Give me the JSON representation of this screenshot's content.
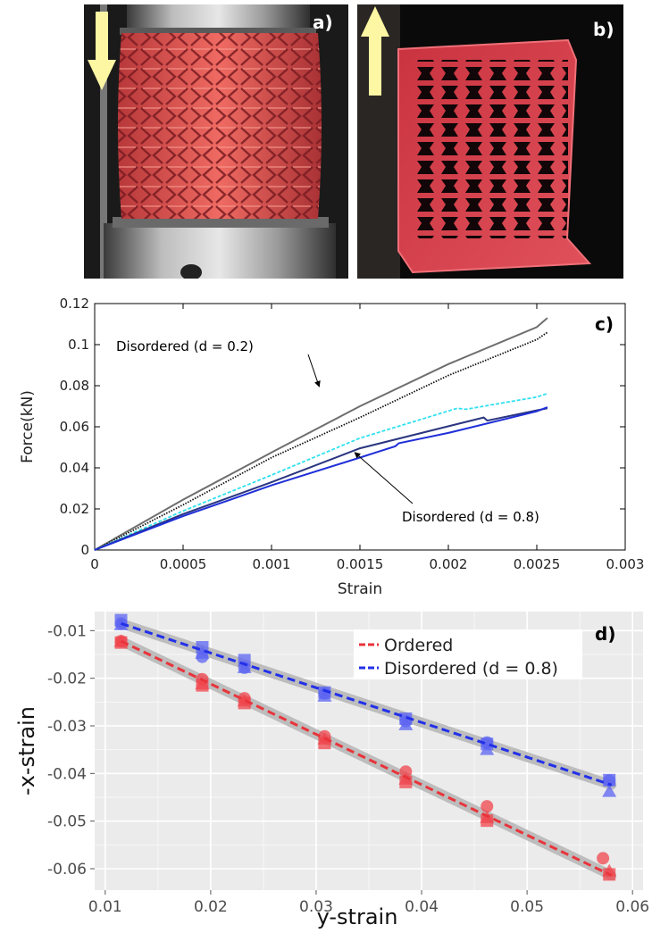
{
  "panels": {
    "a": {
      "label": "a)"
    },
    "b": {
      "label": "b)"
    },
    "c": {
      "label": "c)"
    },
    "d": {
      "label": "d)"
    }
  },
  "photo_a": {
    "arrow": "down-arrow-icon",
    "arrow_color": "#fdf6a3",
    "specimen_color": "#e45a55"
  },
  "photo_b": {
    "arrow": "up-arrow-icon",
    "arrow_color": "#fdf6a3",
    "specimen_color": "#d63e4c"
  },
  "chart_data": [
    {
      "type": "line",
      "xlabel": "Strain",
      "ylabel": "Force(kN)",
      "xlim": [
        0,
        0.003
      ],
      "ylim": [
        0,
        0.12
      ],
      "xticks": [
        0,
        0.0005,
        0.001,
        0.0015,
        0.002,
        0.0025,
        0.003
      ],
      "xtick_labels": [
        "0",
        "0.0005",
        "0.001",
        "0.0015",
        "0.002",
        "0.0025",
        "0.003"
      ],
      "yticks": [
        0,
        0.02,
        0.04,
        0.06,
        0.08,
        0.1,
        0.12
      ],
      "ytick_labels": [
        "0",
        "0.02",
        "0.04",
        "0.06",
        "0.08",
        "0.1",
        "0.12"
      ],
      "grid": false,
      "series": [
        {
          "color": "#6e6e6e",
          "dash": "solid",
          "x": [
            0,
            0.0005,
            0.001,
            0.0015,
            0.002,
            0.0025,
            0.00256
          ],
          "y": [
            0,
            0.0245,
            0.0475,
            0.07,
            0.0905,
            0.1085,
            0.113
          ]
        },
        {
          "color": "#111111",
          "dash": "dotted",
          "x": [
            0,
            0.0005,
            0.001,
            0.0015,
            0.002,
            0.0025,
            0.00256
          ],
          "y": [
            0,
            0.022,
            0.045,
            0.0645,
            0.085,
            0.1025,
            0.106
          ]
        },
        {
          "color": "#30e0f0",
          "dash": "dashed",
          "x": [
            0,
            0.0005,
            0.001,
            0.0015,
            0.00205,
            0.0021,
            0.0025,
            0.00256
          ],
          "y": [
            0,
            0.019,
            0.0365,
            0.0545,
            0.069,
            0.0685,
            0.0745,
            0.0762
          ]
        },
        {
          "color": "#2a3580",
          "dash": "solid",
          "x": [
            0,
            0.0005,
            0.001,
            0.0015,
            0.0022,
            0.00222,
            0.0025,
            0.00256
          ],
          "y": [
            0,
            0.0175,
            0.033,
            0.0495,
            0.0645,
            0.063,
            0.068,
            0.069
          ]
        },
        {
          "color": "#1f2fd8",
          "dash": "solid",
          "x": [
            0,
            0.0005,
            0.001,
            0.0015,
            0.0017,
            0.00172,
            0.002,
            0.0025,
            0.00256
          ],
          "y": [
            0,
            0.0165,
            0.0315,
            0.045,
            0.0505,
            0.052,
            0.057,
            0.0675,
            0.0695
          ]
        }
      ],
      "annotations": [
        {
          "text": "Disordered (d = 0.2)",
          "point": [
            0.00127,
            0.0795
          ]
        },
        {
          "text": "Disordered (d = 0.8)",
          "point": [
            0.00147,
            0.0475
          ]
        }
      ]
    },
    {
      "type": "scatter",
      "xlabel": "y-strain",
      "ylabel": "-x-strain",
      "xlim": [
        0.009,
        0.061
      ],
      "ylim": [
        -0.0645,
        -0.006
      ],
      "xticks": [
        0.01,
        0.02,
        0.03,
        0.04,
        0.05,
        0.06
      ],
      "xtick_labels": [
        "0.01",
        "0.02",
        "0.03",
        "0.04",
        "0.05",
        "0.06"
      ],
      "yticks": [
        -0.01,
        -0.02,
        -0.03,
        -0.04,
        -0.05,
        -0.06
      ],
      "ytick_labels": [
        "-0.01",
        "-0.02",
        "-0.03",
        "-0.04",
        "-0.05",
        "-0.06"
      ],
      "grid": true,
      "background": "#ebebeb",
      "legend_position": "top-right",
      "series": [
        {
          "name": "Ordered",
          "color": "#f0464e",
          "fit": [
            [
              0.0115,
              -0.0122
            ],
            [
              0.058,
              -0.0614
            ]
          ],
          "points": {
            "circle": [
              [
                0.0115,
                -0.0122
              ],
              [
                0.0192,
                -0.0202
              ],
              [
                0.0232,
                -0.0242
              ],
              [
                0.0308,
                -0.0322
              ],
              [
                0.0385,
                -0.0396
              ],
              [
                0.0462,
                -0.0469
              ],
              [
                0.0572,
                -0.0578
              ]
            ],
            "square": [
              [
                0.0115,
                -0.0125
              ],
              [
                0.0192,
                -0.0215
              ],
              [
                0.0232,
                -0.0252
              ],
              [
                0.0308,
                -0.0336
              ],
              [
                0.0385,
                -0.0418
              ],
              [
                0.0462,
                -0.0499
              ],
              [
                0.0578,
                -0.0612
              ]
            ],
            "triangle": [
              [
                0.0115,
                -0.0123
              ],
              [
                0.0192,
                -0.0212
              ],
              [
                0.0232,
                -0.0248
              ],
              [
                0.0308,
                -0.0328
              ],
              [
                0.0385,
                -0.0412
              ],
              [
                0.0462,
                -0.0493
              ],
              [
                0.0578,
                -0.0605
              ]
            ]
          }
        },
        {
          "name": "Disordered (d = 0.8)",
          "color": "#5c64f2",
          "fit": [
            [
              0.0115,
              -0.0085
            ],
            [
              0.058,
              -0.0424
            ]
          ],
          "points": {
            "circle": [
              [
                0.0115,
                -0.0085
              ],
              [
                0.0192,
                -0.0155
              ],
              [
                0.0232,
                -0.0178
              ],
              [
                0.0308,
                -0.0232
              ],
              [
                0.0385,
                -0.029
              ],
              [
                0.0462,
                -0.0335
              ],
              [
                0.0578,
                -0.0415
              ]
            ],
            "square": [
              [
                0.0115,
                -0.0078
              ],
              [
                0.0192,
                -0.0135
              ],
              [
                0.0232,
                -0.0162
              ],
              [
                0.0308,
                -0.023
              ],
              [
                0.0385,
                -0.0285
              ],
              [
                0.0462,
                -0.0338
              ],
              [
                0.0578,
                -0.0414
              ]
            ],
            "triangle": [
              [
                0.0115,
                -0.0088
              ],
              [
                0.0192,
                -0.0148
              ],
              [
                0.0232,
                -0.0178
              ],
              [
                0.0308,
                -0.0238
              ],
              [
                0.0385,
                -0.0298
              ],
              [
                0.0462,
                -0.035
              ],
              [
                0.0578,
                -0.0438
              ]
            ]
          }
        }
      ]
    }
  ]
}
